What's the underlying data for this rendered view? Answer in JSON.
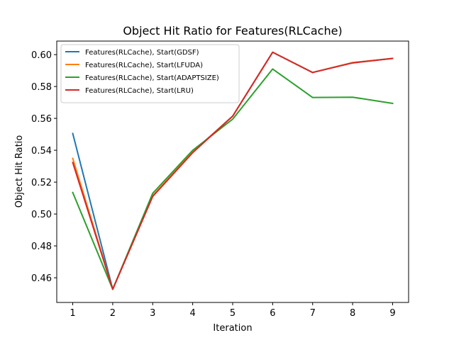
{
  "chart_data": {
    "type": "line",
    "title": "Object Hit Ratio for Features(RLCache)",
    "xlabel": "Iteration",
    "ylabel": "Object Hit Ratio",
    "x": [
      1,
      2,
      3,
      4,
      5,
      6,
      7,
      8,
      9
    ],
    "xlim": [
      0.6,
      9.4
    ],
    "ylim": [
      0.4445,
      0.6085
    ],
    "xticks": [
      1,
      2,
      3,
      4,
      5,
      6,
      7,
      8,
      9
    ],
    "yticks": [
      0.46,
      0.48,
      0.5,
      0.52,
      0.54,
      0.56,
      0.58,
      0.6
    ],
    "ytick_labels": [
      "0.46",
      "0.48",
      "0.50",
      "0.52",
      "0.54",
      "0.56",
      "0.58",
      "0.60"
    ],
    "grid": false,
    "legend_position": "top-left",
    "series": [
      {
        "name": "Features(RLCache), Start(GDSF)",
        "color": "#1f77b4",
        "values": [
          0.5505,
          0.4528,
          0.5114,
          0.539,
          0.5614,
          0.6015,
          0.5888,
          0.595,
          0.5976
        ]
      },
      {
        "name": "Features(RLCache), Start(LFUDA)",
        "color": "#ff7f0e",
        "values": [
          0.5349,
          0.4528,
          0.5114,
          0.539,
          0.5614,
          0.6015,
          0.5888,
          0.595,
          0.5976
        ]
      },
      {
        "name": "Features(RLCache), Start(ADAPTSIZE)",
        "color": "#2ca02c",
        "values": [
          0.5135,
          0.4528,
          0.513,
          0.54,
          0.5595,
          0.591,
          0.5731,
          0.5733,
          0.5694
        ]
      },
      {
        "name": "Features(RLCache), Start(LRU)",
        "color": "#d62728",
        "values": [
          0.5323,
          0.4528,
          0.511,
          0.5385,
          0.5614,
          0.6015,
          0.5888,
          0.5948,
          0.5976
        ]
      }
    ]
  }
}
